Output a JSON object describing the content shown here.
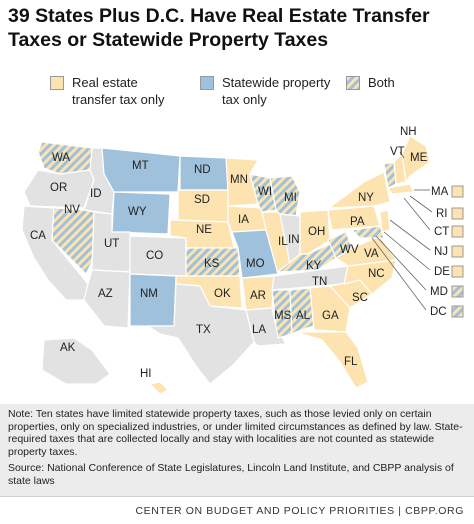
{
  "title": "39 States Plus D.C. Have Real Estate Transfer Taxes or Statewide Property Taxes",
  "legend": {
    "real_estate": "Real estate transfer tax only",
    "statewide": "Statewide property tax only",
    "both": "Both"
  },
  "colors": {
    "real_estate": "#fde3b0",
    "statewide": "#9fc1db",
    "none": "#e2e2e2",
    "both_a": "#fde3b0",
    "both_b": "#9fc1db",
    "border": "#ffffff"
  },
  "states": {
    "WA": "WA",
    "OR": "OR",
    "CA": "CA",
    "ID": "ID",
    "NV": "NV",
    "MT": "MT",
    "WY": "WY",
    "UT": "UT",
    "AZ": "AZ",
    "CO": "CO",
    "NM": "NM",
    "ND": "ND",
    "SD": "SD",
    "NE": "NE",
    "KS": "KS",
    "OK": "OK",
    "TX": "TX",
    "MN": "MN",
    "IA": "IA",
    "MO": "MO",
    "AR": "AR",
    "LA": "LA",
    "WI": "WI",
    "IL": "IL",
    "MI": "MI",
    "IN": "IN",
    "OH": "OH",
    "KY": "KY",
    "TN": "TN",
    "MS": "MS",
    "AL": "AL",
    "GA": "GA",
    "FL": "FL",
    "SC": "SC",
    "NC": "NC",
    "VA": "VA",
    "WV": "WV",
    "PA": "PA",
    "NY": "NY",
    "VT": "VT",
    "NH": "NH",
    "ME": "ME",
    "AK": "AK",
    "HI": "HI"
  },
  "small_states": [
    "MA",
    "RI",
    "CT",
    "NJ",
    "DE",
    "MD",
    "DC"
  ],
  "note": "Note: Ten states have limited statewide property taxes, such as those levied only on certain properties, only on specialized industries, or under limited circumstances as defined by law. State-required taxes that are collected locally and stay with localities are not counted as statewide property taxes.",
  "source": "Source: National Conference of State Legislatures, Lincoln Land Institute, and CBPP analysis of state laws",
  "footer": "CENTER ON BUDGET AND POLICY PRIORITIES | CBPP.ORG"
}
